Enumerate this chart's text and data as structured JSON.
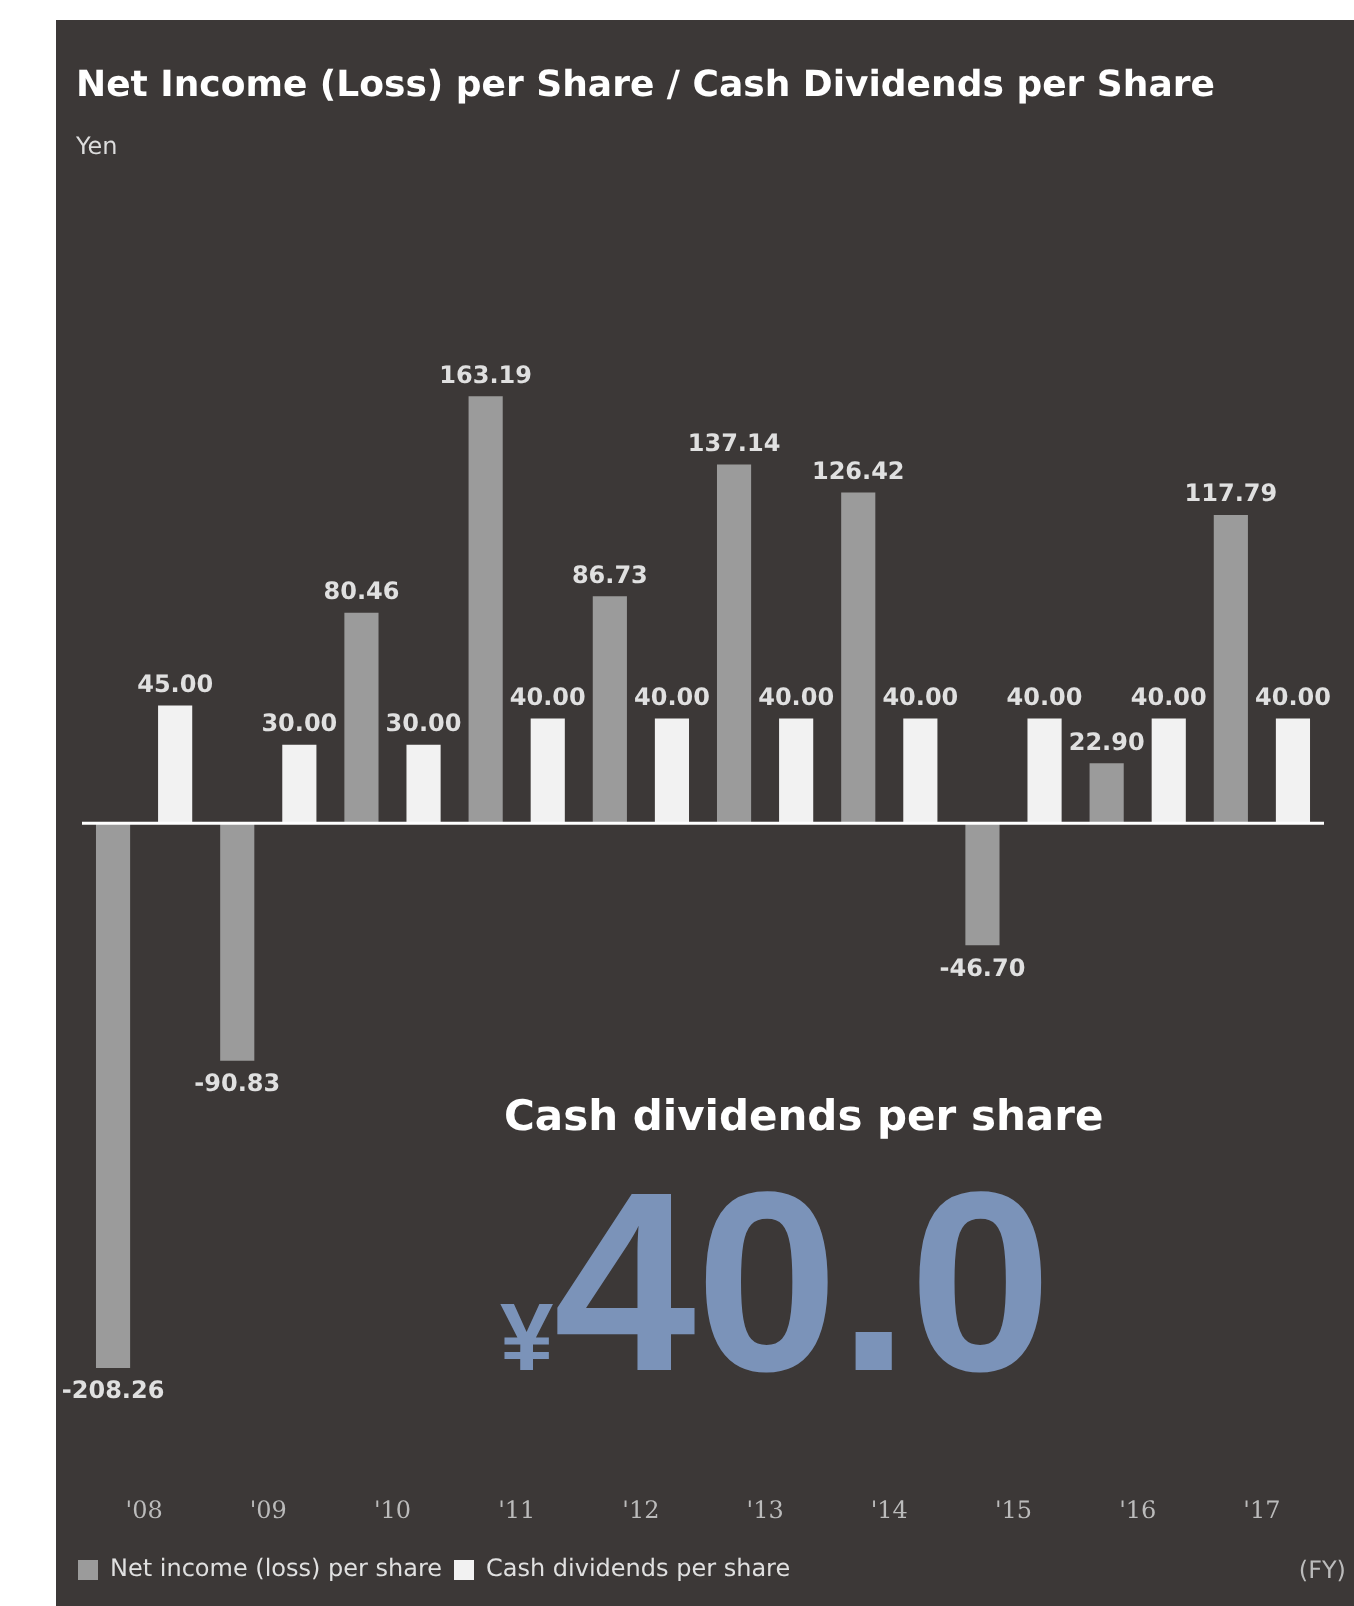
{
  "chart_data": {
    "type": "bar",
    "title": "Net Income (Loss) per Share / Cash Dividends per Share",
    "subtitle": "Yen",
    "xlabel": "(FY)",
    "categories": [
      "'08",
      "'09",
      "'10",
      "'11",
      "'12",
      "'13",
      "'14",
      "'15",
      "'16",
      "'17"
    ],
    "series": [
      {
        "name": "Net income (loss) per share",
        "color": "#9b9b9b",
        "values": [
          -208.26,
          -90.83,
          80.46,
          163.19,
          86.73,
          137.14,
          126.42,
          -46.7,
          22.9,
          117.79
        ],
        "value_labels": [
          "-208.26",
          "-90.83",
          "80.46",
          "163.19",
          "86.73",
          "137.14",
          "126.42",
          "-46.70",
          "22.90",
          "117.79"
        ]
      },
      {
        "name": "Cash dividends per share",
        "color": "#f2f2f2",
        "values": [
          45.0,
          30.0,
          30.0,
          40.0,
          40.0,
          40.0,
          40.0,
          40.0,
          40.0,
          40.0
        ],
        "value_labels": [
          "45.00",
          "30.00",
          "30.00",
          "40.00",
          "40.00",
          "40.00",
          "40.00",
          "40.00",
          "40.00",
          "40.00"
        ]
      }
    ],
    "grid": false,
    "tick_labels": "x",
    "legend": "bottom left",
    "annotations": [
      "Cash dividends per share",
      "¥40.0"
    ]
  }
}
